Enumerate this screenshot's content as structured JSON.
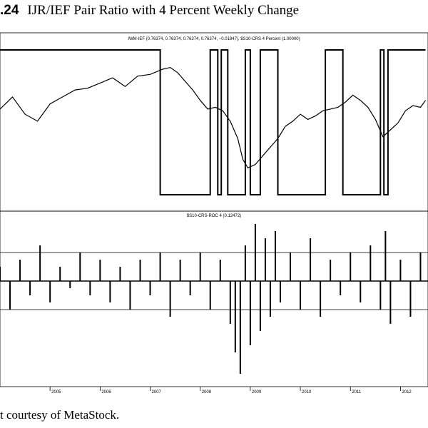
{
  "caption": {
    "number": ".24",
    "title": "IJR/IEF Pair Ratio with 4 Percent Weekly Change"
  },
  "footer": "t courtesy of MetaStock.",
  "chart_data": [
    {
      "type": "line",
      "legend": "IWM-IEF (0.76374, 0.76374, 0.76374, 0.76374, −0.01847), $S10-CRS 4 Percent (1.00000)",
      "series": [
        {
          "name": "IWM-IEF",
          "x": [
            2004.0,
            2004.25,
            2004.5,
            2004.75,
            2005.0,
            2005.25,
            2005.5,
            2005.75,
            2006.0,
            2006.25,
            2006.5,
            2006.75,
            2007.0,
            2007.25,
            2007.4,
            2007.55,
            2007.7,
            2007.85,
            2008.0,
            2008.15,
            2008.3,
            2008.45,
            2008.6,
            2008.75,
            2008.85,
            2008.95,
            2009.1,
            2009.25,
            2009.4,
            2009.55,
            2009.7,
            2009.85,
            2010.0,
            2010.15,
            2010.3,
            2010.45,
            2010.6,
            2010.75,
            2010.9,
            2011.05,
            2011.2,
            2011.35,
            2011.5,
            2011.65,
            2011.8,
            2011.95,
            2012.1,
            2012.25,
            2012.4,
            2012.5
          ],
          "y": [
            0.745,
            0.752,
            0.742,
            0.738,
            0.748,
            0.752,
            0.756,
            0.757,
            0.76,
            0.763,
            0.758,
            0.764,
            0.765,
            0.768,
            0.769,
            0.766,
            0.761,
            0.756,
            0.75,
            0.745,
            0.746,
            0.744,
            0.738,
            0.728,
            0.716,
            0.711,
            0.713,
            0.718,
            0.723,
            0.728,
            0.735,
            0.738,
            0.742,
            0.739,
            0.741,
            0.744,
            0.745,
            0.746,
            0.749,
            0.753,
            0.75,
            0.746,
            0.739,
            0.729,
            0.733,
            0.737,
            0.744,
            0.747,
            0.746,
            0.75
          ]
        },
        {
          "name": "$S10-CRS 4 Percent",
          "step": true,
          "x": [
            2004.0,
            2007.2,
            2007.2,
            2008.2,
            2008.2,
            2008.35,
            2008.35,
            2008.42,
            2008.42,
            2008.55,
            2008.55,
            2008.9,
            2008.9,
            2009.0,
            2009.0,
            2009.2,
            2009.2,
            2009.55,
            2009.55,
            2010.5,
            2010.5,
            2010.85,
            2010.85,
            2011.6,
            2011.6,
            2011.67,
            2011.67,
            2011.75,
            2011.75,
            2012.5
          ],
          "y": [
            1,
            1,
            0,
            0,
            1,
            1,
            0,
            0,
            1,
            1,
            0,
            0,
            1,
            1,
            0,
            0,
            1,
            1,
            0,
            0,
            1,
            1,
            0,
            0,
            1,
            1,
            0,
            0,
            1,
            1
          ]
        }
      ]
    },
    {
      "type": "bar",
      "legend": "$S10-CRS-ROC 4 (0.12472)",
      "reference_lines": [
        4,
        -4
      ],
      "x": [
        2004.0,
        2004.2,
        2004.4,
        2004.6,
        2004.8,
        2005.0,
        2005.2,
        2005.4,
        2005.6,
        2005.8,
        2006.0,
        2006.2,
        2006.4,
        2006.6,
        2006.8,
        2007.0,
        2007.2,
        2007.4,
        2007.6,
        2007.8,
        2008.0,
        2008.2,
        2008.4,
        2008.6,
        2008.7,
        2008.8,
        2008.9,
        2009.0,
        2009.1,
        2009.2,
        2009.3,
        2009.4,
        2009.5,
        2009.6,
        2009.8,
        2010.0,
        2010.2,
        2010.4,
        2010.6,
        2010.8,
        2011.0,
        2011.2,
        2011.4,
        2011.6,
        2011.7,
        2011.8,
        2012.0,
        2012.2,
        2012.4
      ],
      "values": [
        2,
        -4,
        3,
        -2,
        5,
        -3,
        2,
        -1,
        4,
        -2,
        3,
        -3,
        2,
        -4,
        3,
        -2,
        4,
        -5,
        3,
        -2,
        4,
        -4,
        3,
        -6,
        -10,
        -13,
        5,
        -9,
        8,
        -7,
        6,
        -5,
        7,
        -3,
        4,
        -4,
        6,
        -5,
        3,
        -2,
        4,
        -3,
        5,
        -4,
        7,
        -6,
        3,
        -5,
        4
      ],
      "x_tick_labels": [
        "2005",
        "2006",
        "2007",
        "2008",
        "2009",
        "2010",
        "2011",
        "2012"
      ],
      "x_ticks": [
        2005,
        2006,
        2007,
        2008,
        2009,
        2010,
        2011,
        2012
      ]
    }
  ]
}
